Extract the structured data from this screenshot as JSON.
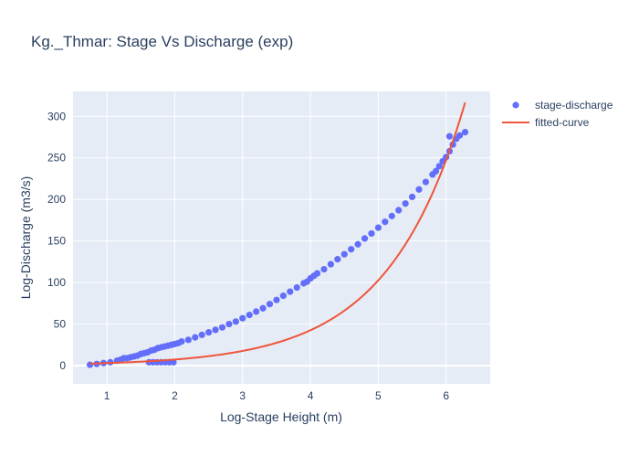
{
  "chart_data": {
    "type": "scatter",
    "title": "Kg._Thmar: Stage Vs Discharge (exp)",
    "xlabel": "Log-Stage Height (m)",
    "ylabel": "Log-Discharge (m3/s)",
    "xlim": [
      0.5,
      6.65
    ],
    "ylim": [
      -22,
      330
    ],
    "xticks": [
      1,
      2,
      3,
      4,
      5,
      6
    ],
    "yticks": [
      0,
      50,
      100,
      150,
      200,
      250,
      300
    ],
    "grid": true,
    "legend_position": "top-right",
    "colors": {
      "plot_bg": "#e5ecf6",
      "scatter": "#636efa",
      "line": "#ef553b"
    },
    "series": [
      {
        "name": "stage-discharge",
        "mode": "markers",
        "x": [
          0.75,
          0.85,
          0.95,
          1.05,
          1.15,
          1.2,
          1.25,
          1.3,
          1.35,
          1.4,
          1.45,
          1.5,
          1.55,
          1.6,
          1.65,
          1.7,
          1.75,
          1.8,
          1.85,
          1.9,
          1.95,
          2.0,
          2.05,
          2.1,
          2.2,
          2.3,
          2.4,
          2.5,
          2.6,
          2.7,
          2.8,
          2.9,
          3.0,
          3.1,
          3.2,
          3.3,
          3.4,
          3.5,
          3.6,
          3.7,
          3.8,
          3.9,
          3.95,
          4.0,
          4.05,
          4.1,
          4.2,
          4.3,
          4.4,
          4.5,
          4.6,
          4.7,
          4.8,
          4.9,
          5.0,
          5.1,
          5.2,
          5.3,
          5.4,
          5.5,
          5.6,
          5.7,
          5.8,
          5.9,
          6.0,
          6.05,
          6.1,
          6.15,
          6.2,
          6.28,
          1.62,
          1.68,
          1.74,
          1.8,
          1.86,
          1.92,
          1.98,
          5.85,
          5.95,
          6.05
        ],
        "y": [
          1,
          2,
          3,
          4,
          6,
          7,
          9,
          9,
          10,
          11,
          12,
          14,
          15,
          16,
          18,
          19,
          21,
          22,
          23,
          24,
          25,
          26,
          27,
          29,
          31,
          34,
          37,
          40,
          43,
          46,
          50,
          53,
          57,
          61,
          65,
          69,
          74,
          79,
          84,
          89,
          94,
          99,
          101,
          105,
          108,
          111,
          116,
          122,
          128,
          134,
          140,
          146,
          153,
          159,
          166,
          173,
          180,
          187,
          195,
          203,
          212,
          221,
          230,
          240,
          251,
          258,
          266,
          273,
          277,
          281,
          4,
          4,
          4,
          4,
          4,
          4,
          4,
          234,
          246,
          276
        ]
      },
      {
        "name": "fitted-curve",
        "mode": "lines",
        "model": "y = 1.26 * exp(0.88 * x)",
        "a": 1.26,
        "b": 0.88,
        "x_range": [
          0.75,
          6.28
        ]
      }
    ]
  }
}
